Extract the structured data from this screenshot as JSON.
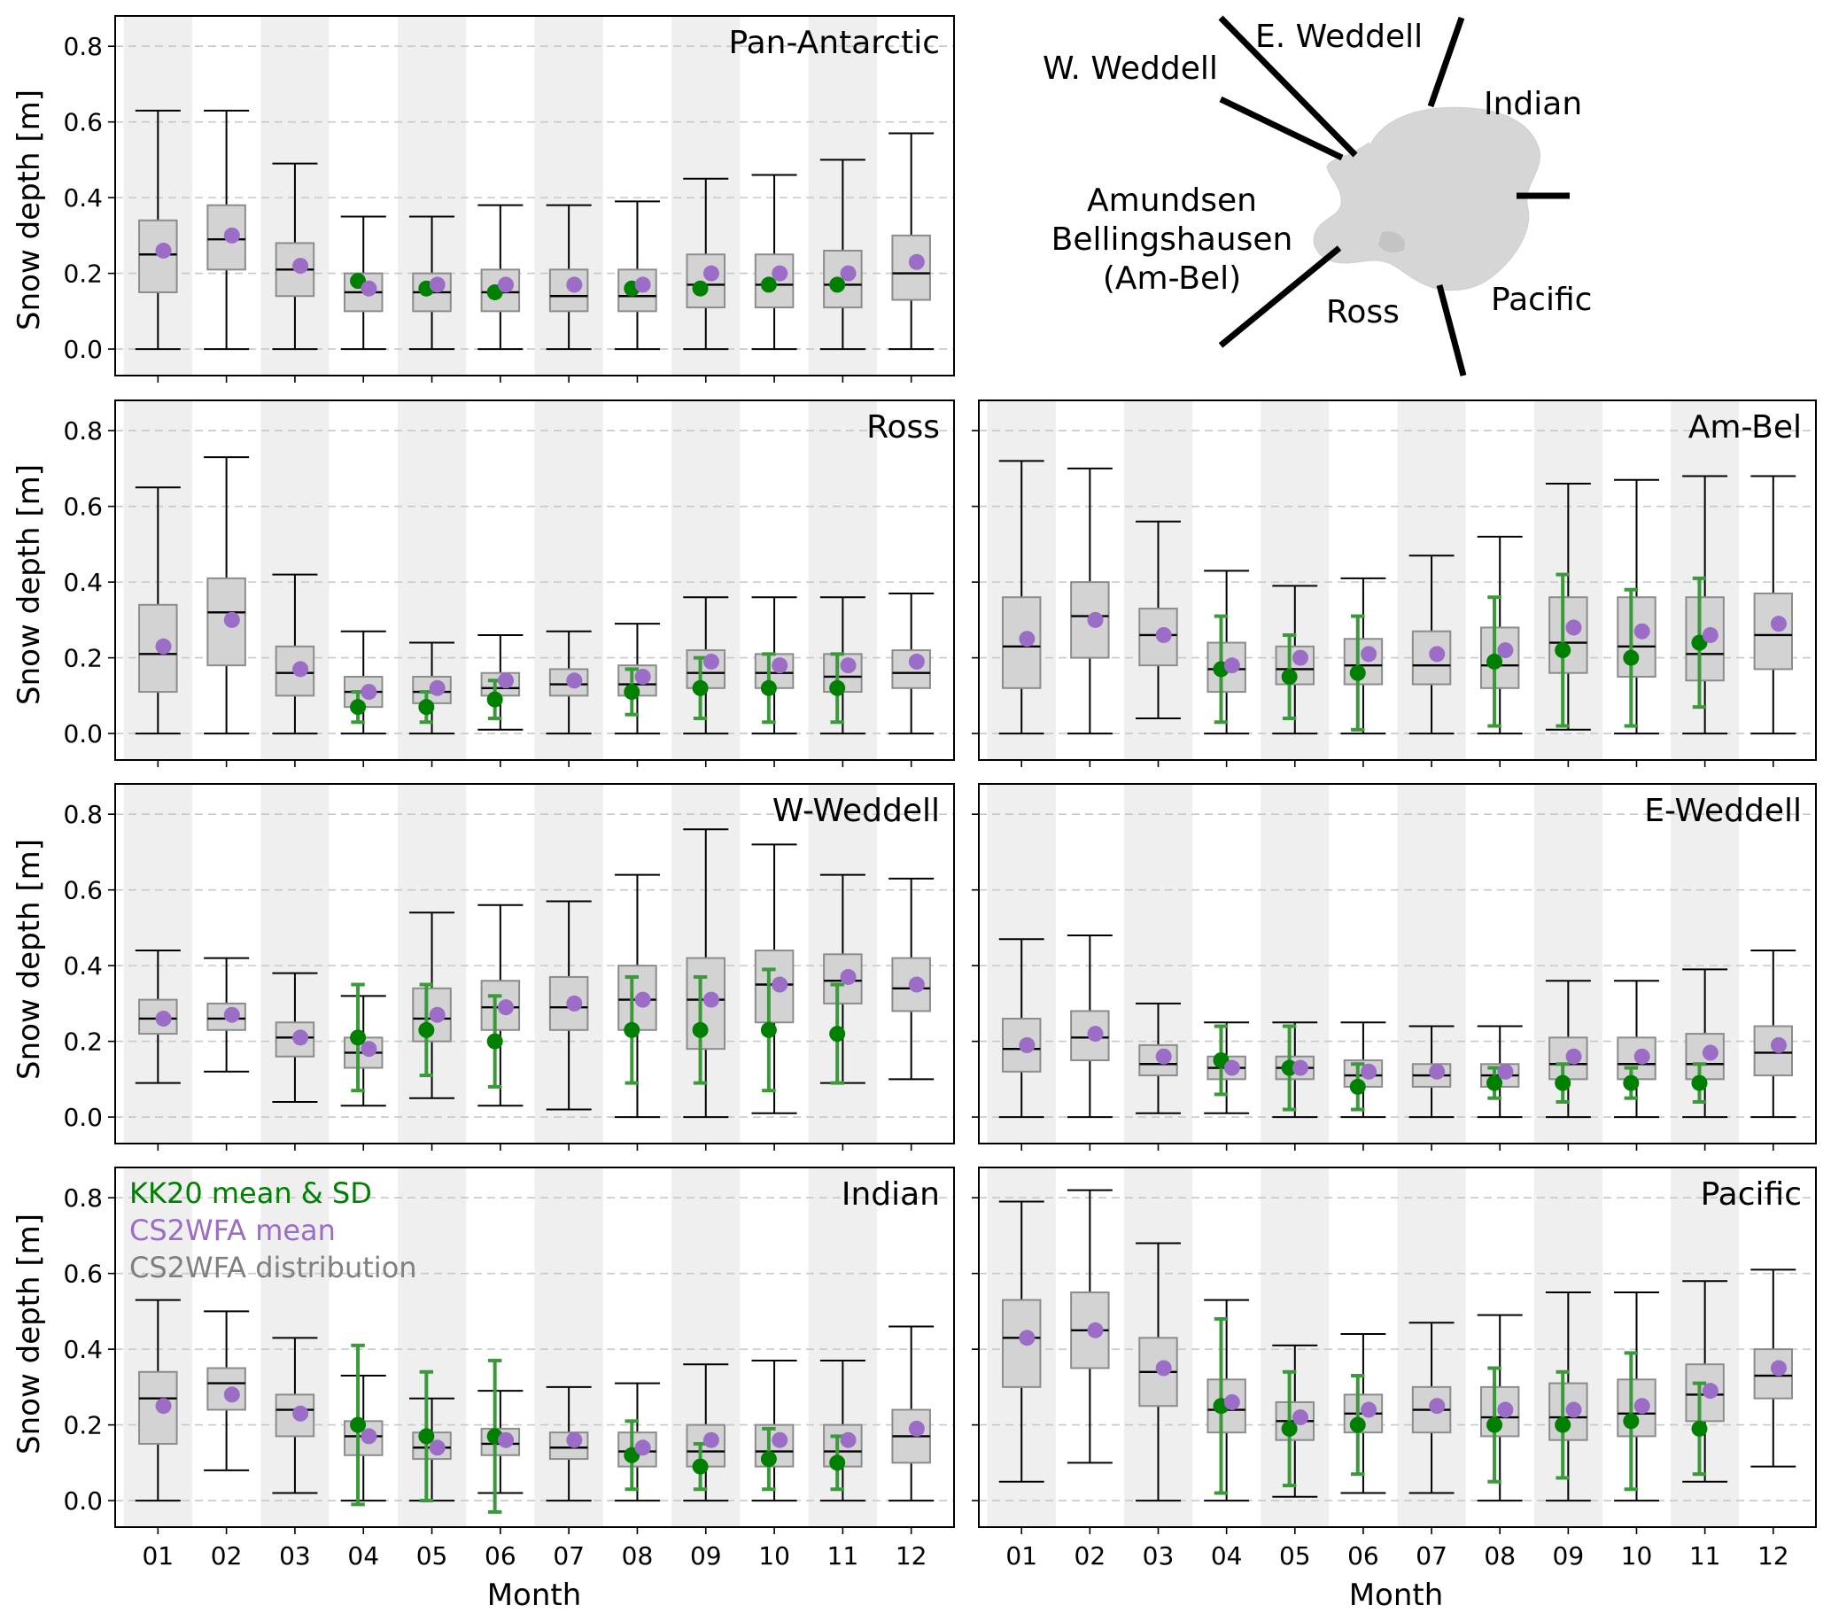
{
  "figure": {
    "ylabel": "Snow depth [m]",
    "xlabel": "Month",
    "month_ticks": [
      "01",
      "02",
      "03",
      "04",
      "05",
      "06",
      "07",
      "08",
      "09",
      "10",
      "11",
      "12"
    ],
    "y_ticks": [
      "0.0",
      "0.2",
      "0.4",
      "0.6",
      "0.8"
    ],
    "colors": {
      "kk20": "#008000",
      "kk20_err": "#3a9a3a",
      "cs2wfa_mean": "#9b6dc6",
      "box_fill": "#d3d3d3",
      "box_edge": "#8c8c8c",
      "shade": "#efefef",
      "grid": "#c8c8c8"
    }
  },
  "legend": {
    "kk20": "KK20 mean & SD",
    "cs2wfa_mean": "CS2WFA mean",
    "cs2wfa_dist": "CS2WFA distribution"
  },
  "map": {
    "labels": [
      "E. Weddell",
      "W. Weddell",
      "Indian",
      "Amundsen",
      "Bellingshausen",
      "(Am-Bel)",
      "Ross",
      "Pacific"
    ]
  },
  "chart_data": [
    {
      "type": "box",
      "title": "Pan-Antarctic",
      "ylim": [
        -0.07,
        0.88
      ],
      "months": [
        "01",
        "02",
        "03",
        "04",
        "05",
        "06",
        "07",
        "08",
        "09",
        "10",
        "11",
        "12"
      ],
      "box": [
        {
          "wlo": 0,
          "q1": 0.15,
          "med": 0.25,
          "q3": 0.34,
          "whi": 0.63
        },
        {
          "wlo": 0,
          "q1": 0.21,
          "med": 0.29,
          "q3": 0.38,
          "whi": 0.63
        },
        {
          "wlo": 0,
          "q1": 0.14,
          "med": 0.21,
          "q3": 0.28,
          "whi": 0.49
        },
        {
          "wlo": 0,
          "q1": 0.1,
          "med": 0.15,
          "q3": 0.2,
          "whi": 0.35
        },
        {
          "wlo": 0,
          "q1": 0.1,
          "med": 0.15,
          "q3": 0.2,
          "whi": 0.35
        },
        {
          "wlo": 0,
          "q1": 0.1,
          "med": 0.15,
          "q3": 0.21,
          "whi": 0.38
        },
        {
          "wlo": 0,
          "q1": 0.1,
          "med": 0.14,
          "q3": 0.21,
          "whi": 0.38
        },
        {
          "wlo": 0,
          "q1": 0.1,
          "med": 0.14,
          "q3": 0.21,
          "whi": 0.39
        },
        {
          "wlo": 0,
          "q1": 0.11,
          "med": 0.17,
          "q3": 0.25,
          "whi": 0.45
        },
        {
          "wlo": 0,
          "q1": 0.11,
          "med": 0.17,
          "q3": 0.25,
          "whi": 0.46
        },
        {
          "wlo": 0,
          "q1": 0.11,
          "med": 0.17,
          "q3": 0.26,
          "whi": 0.5
        },
        {
          "wlo": 0,
          "q1": 0.13,
          "med": 0.2,
          "q3": 0.3,
          "whi": 0.57
        }
      ],
      "cs2wfa_mean": [
        0.26,
        0.3,
        0.22,
        0.16,
        0.17,
        0.17,
        0.17,
        0.17,
        0.2,
        0.2,
        0.2,
        0.23
      ],
      "kk20": [
        null,
        null,
        null,
        {
          "m": 0.18,
          "sd": 0.0
        },
        {
          "m": 0.16,
          "sd": 0.0
        },
        {
          "m": 0.15,
          "sd": 0.0
        },
        null,
        {
          "m": 0.16,
          "sd": 0.0
        },
        {
          "m": 0.16,
          "sd": 0.0
        },
        {
          "m": 0.17,
          "sd": 0.0
        },
        {
          "m": 0.17,
          "sd": 0.0
        },
        null
      ]
    },
    {
      "type": "box",
      "title": "Ross",
      "ylim": [
        -0.07,
        0.88
      ],
      "months": [
        "01",
        "02",
        "03",
        "04",
        "05",
        "06",
        "07",
        "08",
        "09",
        "10",
        "11",
        "12"
      ],
      "box": [
        {
          "wlo": 0,
          "q1": 0.11,
          "med": 0.21,
          "q3": 0.34,
          "whi": 0.65
        },
        {
          "wlo": 0,
          "q1": 0.18,
          "med": 0.32,
          "q3": 0.41,
          "whi": 0.73
        },
        {
          "wlo": 0,
          "q1": 0.1,
          "med": 0.16,
          "q3": 0.23,
          "whi": 0.42
        },
        {
          "wlo": 0,
          "q1": 0.07,
          "med": 0.11,
          "q3": 0.15,
          "whi": 0.27
        },
        {
          "wlo": 0,
          "q1": 0.08,
          "med": 0.11,
          "q3": 0.15,
          "whi": 0.24
        },
        {
          "wlo": 0.01,
          "q1": 0.1,
          "med": 0.12,
          "q3": 0.16,
          "whi": 0.26
        },
        {
          "wlo": 0,
          "q1": 0.1,
          "med": 0.13,
          "q3": 0.17,
          "whi": 0.27
        },
        {
          "wlo": 0,
          "q1": 0.1,
          "med": 0.13,
          "q3": 0.18,
          "whi": 0.29
        },
        {
          "wlo": 0,
          "q1": 0.12,
          "med": 0.16,
          "q3": 0.22,
          "whi": 0.36
        },
        {
          "wlo": 0,
          "q1": 0.12,
          "med": 0.16,
          "q3": 0.21,
          "whi": 0.36
        },
        {
          "wlo": 0,
          "q1": 0.11,
          "med": 0.15,
          "q3": 0.21,
          "whi": 0.36
        },
        {
          "wlo": 0,
          "q1": 0.12,
          "med": 0.16,
          "q3": 0.22,
          "whi": 0.37
        }
      ],
      "cs2wfa_mean": [
        0.23,
        0.3,
        0.17,
        0.11,
        0.12,
        0.14,
        0.14,
        0.15,
        0.19,
        0.18,
        0.18,
        0.19
      ],
      "kk20": [
        null,
        null,
        null,
        {
          "m": 0.07,
          "sd": 0.04
        },
        {
          "m": 0.07,
          "sd": 0.04
        },
        {
          "m": 0.09,
          "sd": 0.05
        },
        null,
        {
          "m": 0.11,
          "sd": 0.06
        },
        {
          "m": 0.12,
          "sd": 0.08
        },
        {
          "m": 0.12,
          "sd": 0.09
        },
        {
          "m": 0.12,
          "sd": 0.09
        },
        null
      ]
    },
    {
      "type": "box",
      "title": "Am-Bel",
      "ylim": [
        -0.07,
        0.88
      ],
      "months": [
        "01",
        "02",
        "03",
        "04",
        "05",
        "06",
        "07",
        "08",
        "09",
        "10",
        "11",
        "12"
      ],
      "box": [
        {
          "wlo": 0,
          "q1": 0.12,
          "med": 0.23,
          "q3": 0.36,
          "whi": 0.72
        },
        {
          "wlo": 0,
          "q1": 0.2,
          "med": 0.31,
          "q3": 0.4,
          "whi": 0.7
        },
        {
          "wlo": 0.04,
          "q1": 0.18,
          "med": 0.26,
          "q3": 0.33,
          "whi": 0.56
        },
        {
          "wlo": 0,
          "q1": 0.11,
          "med": 0.17,
          "q3": 0.24,
          "whi": 0.43
        },
        {
          "wlo": 0,
          "q1": 0.13,
          "med": 0.17,
          "q3": 0.23,
          "whi": 0.39
        },
        {
          "wlo": 0,
          "q1": 0.13,
          "med": 0.18,
          "q3": 0.25,
          "whi": 0.41
        },
        {
          "wlo": 0,
          "q1": 0.13,
          "med": 0.18,
          "q3": 0.27,
          "whi": 0.47
        },
        {
          "wlo": 0,
          "q1": 0.12,
          "med": 0.18,
          "q3": 0.28,
          "whi": 0.52
        },
        {
          "wlo": 0.01,
          "q1": 0.16,
          "med": 0.24,
          "q3": 0.36,
          "whi": 0.66
        },
        {
          "wlo": 0,
          "q1": 0.15,
          "med": 0.23,
          "q3": 0.36,
          "whi": 0.67
        },
        {
          "wlo": 0,
          "q1": 0.14,
          "med": 0.21,
          "q3": 0.36,
          "whi": 0.68
        },
        {
          "wlo": 0,
          "q1": 0.17,
          "med": 0.26,
          "q3": 0.37,
          "whi": 0.68
        }
      ],
      "cs2wfa_mean": [
        0.25,
        0.3,
        0.26,
        0.18,
        0.2,
        0.21,
        0.21,
        0.22,
        0.28,
        0.27,
        0.26,
        0.29
      ],
      "kk20": [
        null,
        null,
        null,
        {
          "m": 0.17,
          "sd": 0.14
        },
        {
          "m": 0.15,
          "sd": 0.11
        },
        {
          "m": 0.16,
          "sd": 0.15
        },
        null,
        {
          "m": 0.19,
          "sd": 0.17
        },
        {
          "m": 0.22,
          "sd": 0.2
        },
        {
          "m": 0.2,
          "sd": 0.18
        },
        {
          "m": 0.24,
          "sd": 0.17
        },
        null
      ]
    },
    {
      "type": "box",
      "title": "W-Weddell",
      "ylim": [
        -0.07,
        0.88
      ],
      "months": [
        "01",
        "02",
        "03",
        "04",
        "05",
        "06",
        "07",
        "08",
        "09",
        "10",
        "11",
        "12"
      ],
      "box": [
        {
          "wlo": 0.09,
          "q1": 0.22,
          "med": 0.26,
          "q3": 0.31,
          "whi": 0.44
        },
        {
          "wlo": 0.12,
          "q1": 0.23,
          "med": 0.26,
          "q3": 0.3,
          "whi": 0.42
        },
        {
          "wlo": 0.04,
          "q1": 0.16,
          "med": 0.21,
          "q3": 0.25,
          "whi": 0.38
        },
        {
          "wlo": 0.03,
          "q1": 0.13,
          "med": 0.17,
          "q3": 0.21,
          "whi": 0.32
        },
        {
          "wlo": 0.05,
          "q1": 0.2,
          "med": 0.26,
          "q3": 0.34,
          "whi": 0.54
        },
        {
          "wlo": 0.03,
          "q1": 0.23,
          "med": 0.29,
          "q3": 0.36,
          "whi": 0.56
        },
        {
          "wlo": 0.02,
          "q1": 0.23,
          "med": 0.29,
          "q3": 0.37,
          "whi": 0.57
        },
        {
          "wlo": 0,
          "q1": 0.23,
          "med": 0.31,
          "q3": 0.4,
          "whi": 0.64
        },
        {
          "wlo": 0,
          "q1": 0.18,
          "med": 0.31,
          "q3": 0.42,
          "whi": 0.76
        },
        {
          "wlo": 0.01,
          "q1": 0.25,
          "med": 0.35,
          "q3": 0.44,
          "whi": 0.72
        },
        {
          "wlo": 0.09,
          "q1": 0.3,
          "med": 0.36,
          "q3": 0.43,
          "whi": 0.64
        },
        {
          "wlo": 0.1,
          "q1": 0.28,
          "med": 0.34,
          "q3": 0.42,
          "whi": 0.63
        }
      ],
      "cs2wfa_mean": [
        0.26,
        0.27,
        0.21,
        0.18,
        0.27,
        0.29,
        0.3,
        0.31,
        0.31,
        0.35,
        0.37,
        0.35
      ],
      "kk20": [
        null,
        null,
        null,
        {
          "m": 0.21,
          "sd": 0.14
        },
        {
          "m": 0.23,
          "sd": 0.12
        },
        {
          "m": 0.2,
          "sd": 0.12
        },
        null,
        {
          "m": 0.23,
          "sd": 0.14
        },
        {
          "m": 0.23,
          "sd": 0.14
        },
        {
          "m": 0.23,
          "sd": 0.16
        },
        {
          "m": 0.22,
          "sd": 0.13
        },
        null
      ]
    },
    {
      "type": "box",
      "title": "E-Weddell",
      "ylim": [
        -0.07,
        0.88
      ],
      "months": [
        "01",
        "02",
        "03",
        "04",
        "05",
        "06",
        "07",
        "08",
        "09",
        "10",
        "11",
        "12"
      ],
      "box": [
        {
          "wlo": 0,
          "q1": 0.12,
          "med": 0.18,
          "q3": 0.26,
          "whi": 0.47
        },
        {
          "wlo": 0,
          "q1": 0.15,
          "med": 0.21,
          "q3": 0.28,
          "whi": 0.48
        },
        {
          "wlo": 0.01,
          "q1": 0.11,
          "med": 0.14,
          "q3": 0.19,
          "whi": 0.3
        },
        {
          "wlo": 0.01,
          "q1": 0.1,
          "med": 0.13,
          "q3": 0.16,
          "whi": 0.25
        },
        {
          "wlo": 0,
          "q1": 0.1,
          "med": 0.13,
          "q3": 0.16,
          "whi": 0.25
        },
        {
          "wlo": 0,
          "q1": 0.08,
          "med": 0.11,
          "q3": 0.15,
          "whi": 0.25
        },
        {
          "wlo": 0,
          "q1": 0.08,
          "med": 0.11,
          "q3": 0.14,
          "whi": 0.24
        },
        {
          "wlo": 0,
          "q1": 0.08,
          "med": 0.11,
          "q3": 0.14,
          "whi": 0.24
        },
        {
          "wlo": 0,
          "q1": 0.1,
          "med": 0.14,
          "q3": 0.21,
          "whi": 0.36
        },
        {
          "wlo": 0,
          "q1": 0.1,
          "med": 0.14,
          "q3": 0.21,
          "whi": 0.36
        },
        {
          "wlo": 0,
          "q1": 0.1,
          "med": 0.14,
          "q3": 0.22,
          "whi": 0.39
        },
        {
          "wlo": 0,
          "q1": 0.11,
          "med": 0.17,
          "q3": 0.24,
          "whi": 0.44
        }
      ],
      "cs2wfa_mean": [
        0.19,
        0.22,
        0.16,
        0.13,
        0.13,
        0.12,
        0.12,
        0.12,
        0.16,
        0.16,
        0.17,
        0.19
      ],
      "kk20": [
        null,
        null,
        null,
        {
          "m": 0.15,
          "sd": 0.09
        },
        {
          "m": 0.13,
          "sd": 0.11
        },
        {
          "m": 0.08,
          "sd": 0.06
        },
        null,
        {
          "m": 0.09,
          "sd": 0.04
        },
        {
          "m": 0.09,
          "sd": 0.05
        },
        {
          "m": 0.09,
          "sd": 0.04
        },
        {
          "m": 0.09,
          "sd": 0.05
        },
        null
      ]
    },
    {
      "type": "box",
      "title": "Indian",
      "ylim": [
        -0.07,
        0.88
      ],
      "months": [
        "01",
        "02",
        "03",
        "04",
        "05",
        "06",
        "07",
        "08",
        "09",
        "10",
        "11",
        "12"
      ],
      "box": [
        {
          "wlo": 0,
          "q1": 0.15,
          "med": 0.27,
          "q3": 0.34,
          "whi": 0.53
        },
        {
          "wlo": 0.08,
          "q1": 0.24,
          "med": 0.31,
          "q3": 0.35,
          "whi": 0.5
        },
        {
          "wlo": 0.02,
          "q1": 0.17,
          "med": 0.24,
          "q3": 0.28,
          "whi": 0.43
        },
        {
          "wlo": 0,
          "q1": 0.12,
          "med": 0.17,
          "q3": 0.21,
          "whi": 0.33
        },
        {
          "wlo": 0,
          "q1": 0.11,
          "med": 0.14,
          "q3": 0.18,
          "whi": 0.27
        },
        {
          "wlo": 0.02,
          "q1": 0.12,
          "med": 0.15,
          "q3": 0.19,
          "whi": 0.29
        },
        {
          "wlo": 0,
          "q1": 0.11,
          "med": 0.14,
          "q3": 0.18,
          "whi": 0.3
        },
        {
          "wlo": 0,
          "q1": 0.09,
          "med": 0.13,
          "q3": 0.18,
          "whi": 0.31
        },
        {
          "wlo": 0,
          "q1": 0.09,
          "med": 0.13,
          "q3": 0.2,
          "whi": 0.36
        },
        {
          "wlo": 0,
          "q1": 0.09,
          "med": 0.13,
          "q3": 0.2,
          "whi": 0.37
        },
        {
          "wlo": 0,
          "q1": 0.09,
          "med": 0.13,
          "q3": 0.2,
          "whi": 0.37
        },
        {
          "wlo": 0,
          "q1": 0.1,
          "med": 0.17,
          "q3": 0.24,
          "whi": 0.46
        }
      ],
      "cs2wfa_mean": [
        0.25,
        0.28,
        0.23,
        0.17,
        0.14,
        0.16,
        0.16,
        0.14,
        0.16,
        0.16,
        0.16,
        0.19
      ],
      "kk20": [
        null,
        null,
        null,
        {
          "m": 0.2,
          "sd": 0.21
        },
        {
          "m": 0.17,
          "sd": 0.17
        },
        {
          "m": 0.17,
          "sd": 0.2
        },
        null,
        {
          "m": 0.12,
          "sd": 0.09
        },
        {
          "m": 0.09,
          "sd": 0.06
        },
        {
          "m": 0.11,
          "sd": 0.08
        },
        {
          "m": 0.1,
          "sd": 0.07
        },
        null
      ]
    },
    {
      "type": "box",
      "title": "Pacific",
      "ylim": [
        -0.07,
        0.88
      ],
      "months": [
        "01",
        "02",
        "03",
        "04",
        "05",
        "06",
        "07",
        "08",
        "09",
        "10",
        "11",
        "12"
      ],
      "box": [
        {
          "wlo": 0.05,
          "q1": 0.3,
          "med": 0.43,
          "q3": 0.53,
          "whi": 0.79
        },
        {
          "wlo": 0.1,
          "q1": 0.35,
          "med": 0.45,
          "q3": 0.55,
          "whi": 0.82
        },
        {
          "wlo": 0,
          "q1": 0.25,
          "med": 0.34,
          "q3": 0.43,
          "whi": 0.68
        },
        {
          "wlo": 0,
          "q1": 0.18,
          "med": 0.24,
          "q3": 0.32,
          "whi": 0.53
        },
        {
          "wlo": 0.01,
          "q1": 0.16,
          "med": 0.21,
          "q3": 0.26,
          "whi": 0.41
        },
        {
          "wlo": 0.02,
          "q1": 0.18,
          "med": 0.23,
          "q3": 0.28,
          "whi": 0.44
        },
        {
          "wlo": 0.02,
          "q1": 0.18,
          "med": 0.24,
          "q3": 0.3,
          "whi": 0.47
        },
        {
          "wlo": 0,
          "q1": 0.17,
          "med": 0.22,
          "q3": 0.3,
          "whi": 0.49
        },
        {
          "wlo": 0,
          "q1": 0.16,
          "med": 0.22,
          "q3": 0.31,
          "whi": 0.55
        },
        {
          "wlo": 0,
          "q1": 0.17,
          "med": 0.23,
          "q3": 0.32,
          "whi": 0.55
        },
        {
          "wlo": 0.05,
          "q1": 0.21,
          "med": 0.28,
          "q3": 0.36,
          "whi": 0.58
        },
        {
          "wlo": 0.09,
          "q1": 0.27,
          "med": 0.33,
          "q3": 0.4,
          "whi": 0.61
        }
      ],
      "cs2wfa_mean": [
        0.43,
        0.45,
        0.35,
        0.26,
        0.22,
        0.24,
        0.25,
        0.24,
        0.24,
        0.25,
        0.29,
        0.35
      ],
      "kk20": [
        null,
        null,
        null,
        {
          "m": 0.25,
          "sd": 0.23
        },
        {
          "m": 0.19,
          "sd": 0.15
        },
        {
          "m": 0.2,
          "sd": 0.13
        },
        null,
        {
          "m": 0.2,
          "sd": 0.15
        },
        {
          "m": 0.2,
          "sd": 0.14
        },
        {
          "m": 0.21,
          "sd": 0.18
        },
        {
          "m": 0.19,
          "sd": 0.12
        },
        null
      ]
    }
  ]
}
